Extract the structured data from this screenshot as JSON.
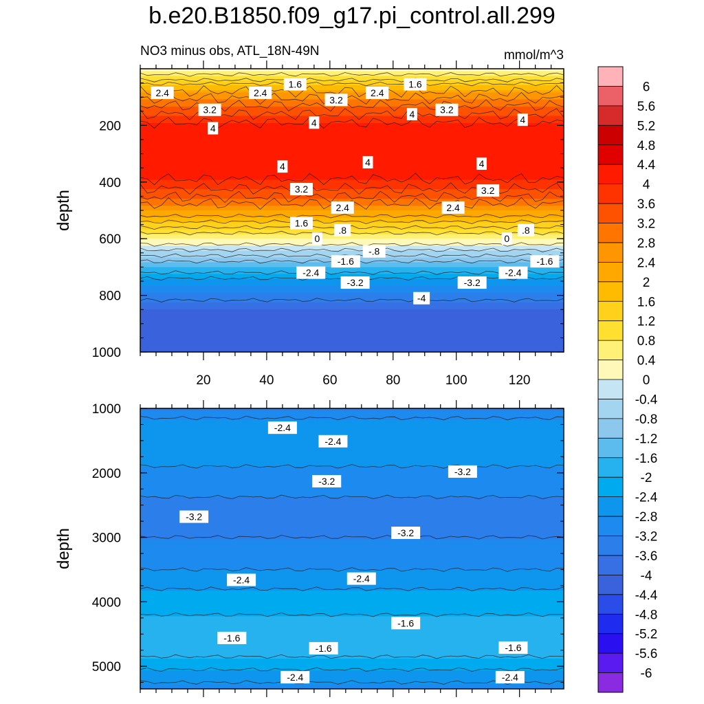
{
  "title": "b.e20.B1850.f09_g17.pi_control.all.299",
  "subtitle_left": "NO3 minus obs, ATL_18N-49N",
  "subtitle_right": "mmol/m^3",
  "chart_data": [
    {
      "type": "heatmap",
      "panel": "upper",
      "ylabel": "depth",
      "xlabel": "",
      "x_range": [
        0,
        134
      ],
      "y_range": [
        0,
        1000
      ],
      "y_reversed": true,
      "xticks": [
        "20",
        "40",
        "60",
        "80",
        "100",
        "120"
      ],
      "yticks": [
        "200",
        "400",
        "600",
        "800",
        "1000"
      ],
      "depth_profile": [
        {
          "depth": 0,
          "value": 0.4
        },
        {
          "depth": 40,
          "value": 1.2
        },
        {
          "depth": 80,
          "value": 2.4
        },
        {
          "depth": 130,
          "value": 3.2
        },
        {
          "depth": 190,
          "value": 4.0
        },
        {
          "depth": 250,
          "value": 4.3
        },
        {
          "depth": 330,
          "value": 4.3
        },
        {
          "depth": 390,
          "value": 4.0
        },
        {
          "depth": 440,
          "value": 3.4
        },
        {
          "depth": 500,
          "value": 2.4
        },
        {
          "depth": 560,
          "value": 1.2
        },
        {
          "depth": 620,
          "value": 0.0
        },
        {
          "depth": 660,
          "value": -0.8
        },
        {
          "depth": 700,
          "value": -1.6
        },
        {
          "depth": 750,
          "value": -2.6
        },
        {
          "depth": 800,
          "value": -3.4
        },
        {
          "depth": 850,
          "value": -4.0
        },
        {
          "depth": 1000,
          "value": -4.4
        }
      ],
      "contour_labels": [
        {
          "text": "2.4",
          "x": 7,
          "y": 85
        },
        {
          "text": "2.4",
          "x": 38,
          "y": 85
        },
        {
          "text": "1.6",
          "x": 49,
          "y": 55
        },
        {
          "text": "3.2",
          "x": 22,
          "y": 145
        },
        {
          "text": "4",
          "x": 23,
          "y": 210
        },
        {
          "text": "4",
          "x": 55,
          "y": 190
        },
        {
          "text": "3.2",
          "x": 62,
          "y": 110
        },
        {
          "text": "2.4",
          "x": 75,
          "y": 85
        },
        {
          "text": "1.6",
          "x": 87,
          "y": 55
        },
        {
          "text": "4",
          "x": 86,
          "y": 160
        },
        {
          "text": "3.2",
          "x": 97,
          "y": 145
        },
        {
          "text": "4",
          "x": 121,
          "y": 180
        },
        {
          "text": "4",
          "x": 45,
          "y": 345
        },
        {
          "text": "4",
          "x": 72,
          "y": 330
        },
        {
          "text": "4",
          "x": 108,
          "y": 335
        },
        {
          "text": "3.2",
          "x": 51,
          "y": 425
        },
        {
          "text": "3.2",
          "x": 110,
          "y": 430
        },
        {
          "text": "2.4",
          "x": 64,
          "y": 490
        },
        {
          "text": "2.4",
          "x": 99,
          "y": 490
        },
        {
          "text": "1.6",
          "x": 51,
          "y": 545
        },
        {
          "text": ".8",
          "x": 64,
          "y": 570
        },
        {
          "text": ".8",
          "x": 122,
          "y": 570
        },
        {
          "text": "0",
          "x": 56,
          "y": 600
        },
        {
          "text": "0",
          "x": 116,
          "y": 600
        },
        {
          "text": "-.8",
          "x": 74,
          "y": 645
        },
        {
          "text": "-1.6",
          "x": 65,
          "y": 680
        },
        {
          "text": "-1.6",
          "x": 128,
          "y": 680
        },
        {
          "text": "-2.4",
          "x": 54,
          "y": 720
        },
        {
          "text": "-2.4",
          "x": 118,
          "y": 720
        },
        {
          "text": "-3.2",
          "x": 68,
          "y": 755
        },
        {
          "text": "-3.2",
          "x": 105,
          "y": 755
        },
        {
          "text": "-4",
          "x": 89,
          "y": 810
        }
      ]
    },
    {
      "type": "heatmap",
      "panel": "lower",
      "ylabel": "depth",
      "xlabel": "",
      "x_range": [
        0,
        134
      ],
      "y_range": [
        1000,
        5350
      ],
      "y_reversed": true,
      "yticks": [
        "1000",
        "2000",
        "3000",
        "4000",
        "5000"
      ],
      "depth_profile": [
        {
          "depth": 1000,
          "value": -3.2
        },
        {
          "depth": 1300,
          "value": -2.4
        },
        {
          "depth": 1600,
          "value": -2.5
        },
        {
          "depth": 2000,
          "value": -2.9
        },
        {
          "depth": 2500,
          "value": -3.3
        },
        {
          "depth": 3000,
          "value": -3.2
        },
        {
          "depth": 3500,
          "value": -2.8
        },
        {
          "depth": 3800,
          "value": -2.4
        },
        {
          "depth": 4200,
          "value": -2.0
        },
        {
          "depth": 4500,
          "value": -1.8
        },
        {
          "depth": 4800,
          "value": -1.9
        },
        {
          "depth": 5000,
          "value": -2.3
        },
        {
          "depth": 5350,
          "value": -3.0
        }
      ],
      "contour_labels": [
        {
          "text": "-2.4",
          "x": 45,
          "y": 1300
        },
        {
          "text": "-2.4",
          "x": 61,
          "y": 1510
        },
        {
          "text": "-3.2",
          "x": 59,
          "y": 2130
        },
        {
          "text": "-3.2",
          "x": 102,
          "y": 1980
        },
        {
          "text": "-3.2",
          "x": 17,
          "y": 2680
        },
        {
          "text": "-3.2",
          "x": 84,
          "y": 2930
        },
        {
          "text": "-2.4",
          "x": 32,
          "y": 3660
        },
        {
          "text": "-2.4",
          "x": 70,
          "y": 3640
        },
        {
          "text": "-1.6",
          "x": 29,
          "y": 4560
        },
        {
          "text": "-1.6",
          "x": 84,
          "y": 4330
        },
        {
          "text": "-1.6",
          "x": 58,
          "y": 4720
        },
        {
          "text": "-1.6",
          "x": 118,
          "y": 4710
        },
        {
          "text": "-2.4",
          "x": 49,
          "y": 5170
        },
        {
          "text": "-2.4",
          "x": 117,
          "y": 5170
        }
      ]
    }
  ],
  "colorbar": {
    "labels": [
      "6",
      "5.6",
      "5.2",
      "4.8",
      "4.4",
      "4",
      "3.6",
      "3.2",
      "2.8",
      "2.4",
      "2",
      "1.6",
      "1.2",
      "0.8",
      "0.4",
      "0",
      "-0.4",
      "-0.8",
      "-1.2",
      "-1.6",
      "-2",
      "-2.4",
      "-2.8",
      "-3.2",
      "-3.6",
      "-4",
      "-4.4",
      "-4.8",
      "-5.2",
      "-5.6",
      "-6"
    ],
    "colors": [
      "#ffb3b8",
      "#eb6167",
      "#d72a2a",
      "#cc0000",
      "#e00000",
      "#ff1a00",
      "#ff3300",
      "#ff5200",
      "#ff7500",
      "#ff9500",
      "#ffa800",
      "#ffbb00",
      "#ffd11a",
      "#ffe030",
      "#fff077",
      "#fff8b8",
      "#c5e5f5",
      "#a3d5f0",
      "#8cc7ee",
      "#5cbcee",
      "#25b2ee",
      "#00aaee",
      "#0e96ee",
      "#1c8aee",
      "#2c7eeb",
      "#3770e5",
      "#3b62dd",
      "#2a4ce8",
      "#1f2cf0",
      "#2a10f0",
      "#5a1bf0",
      "#8a2be2"
    ]
  }
}
